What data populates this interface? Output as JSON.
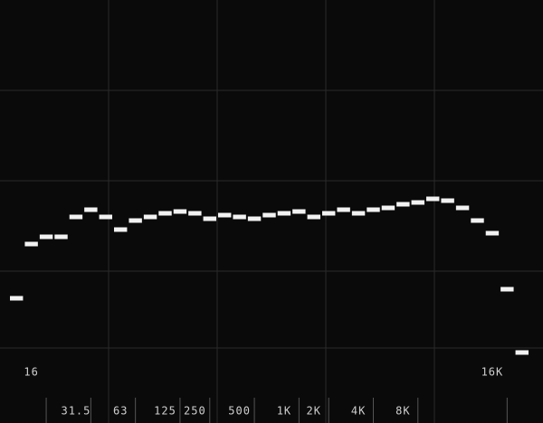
{
  "chart_data": {
    "type": "step",
    "categories": [
      null,
      "16",
      null,
      null,
      "31.5",
      null,
      null,
      "63",
      null,
      null,
      "125",
      null,
      "250",
      null,
      null,
      "500",
      null,
      null,
      "1K",
      null,
      "2K",
      null,
      null,
      "4K",
      null,
      null,
      "8K",
      null,
      null,
      null,
      null,
      null,
      "16K",
      null,
      null
    ],
    "values": [
      17.5,
      32.5,
      34.5,
      34.5,
      40,
      42,
      40,
      36.5,
      39,
      40,
      41,
      41.5,
      41,
      39.5,
      40.5,
      40,
      39.5,
      40.5,
      41,
      41.5,
      40,
      41,
      42,
      41,
      42,
      42.5,
      43.5,
      44,
      45,
      44.5,
      42.5,
      39,
      35.5,
      20,
      2.5
    ],
    "color": "#f2f2f2",
    "ylim": [
      0,
      100
    ]
  }
}
